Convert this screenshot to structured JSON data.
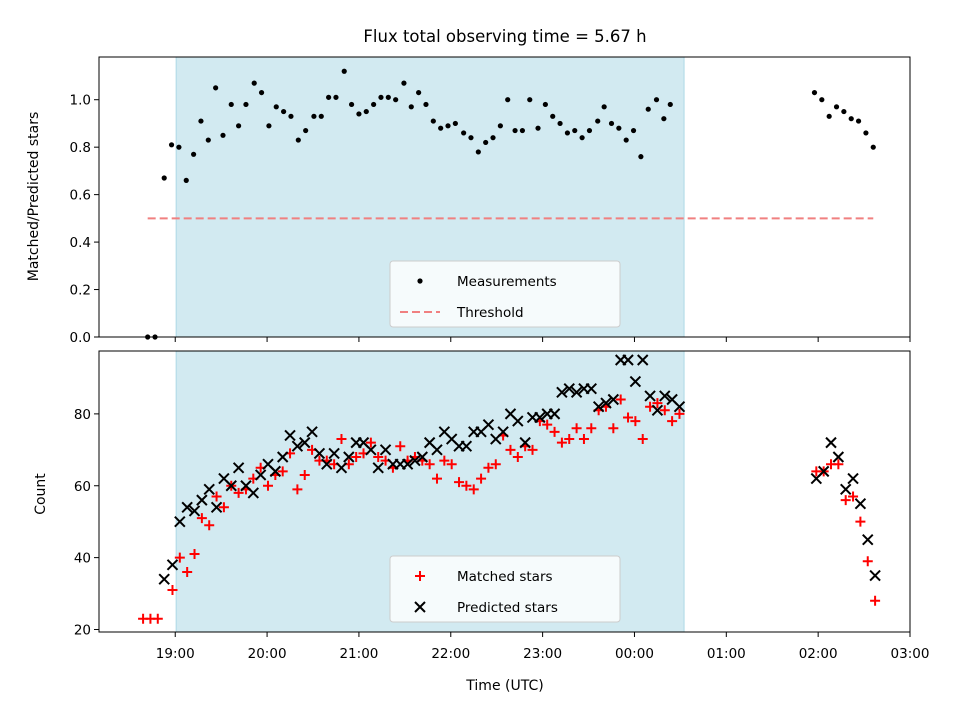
{
  "colors": {
    "shade": "#add8e6",
    "measurement": "#000000",
    "threshold": "#f08080",
    "matched": "#ff0000",
    "predicted": "#000000",
    "legend_bg": "#ffffff"
  },
  "chart_data": [
    {
      "type": "scatter",
      "title": "Flux total observing time = 5.67 h",
      "xlabel": "",
      "ylabel": "Matched/Predicted stars",
      "x_unit": "hours since 00:00 UTC (negative = previous day); tick labels are clock times",
      "xlim": [
        -5.83,
        3.0
      ],
      "ylim": [
        0.0,
        1.18
      ],
      "yticks": [
        "0.0",
        "0.2",
        "0.4",
        "0.6",
        "0.8",
        "1.0"
      ],
      "ytick_values": [
        0.0,
        0.2,
        0.4,
        0.6,
        0.8,
        1.0
      ],
      "xticks": [
        "19:00",
        "20:00",
        "21:00",
        "22:00",
        "23:00",
        "00:00",
        "01:00",
        "02:00",
        "03:00"
      ],
      "xtick_values": [
        -5,
        -4,
        -3,
        -2,
        -1,
        0,
        1,
        2,
        3
      ],
      "show_xticklabels": false,
      "shaded_span": [
        -4.99,
        0.54
      ],
      "legend": {
        "placement": "lower center",
        "entries": [
          "Measurements",
          "Threshold"
        ]
      },
      "series": [
        {
          "name": "Measurements",
          "marker": "dot",
          "points": [
            [
              -5.3,
              0.0
            ],
            [
              -5.22,
              0.0
            ],
            [
              -5.12,
              0.67
            ],
            [
              -5.04,
              0.81
            ],
            [
              -4.96,
              0.8
            ],
            [
              -4.88,
              0.66
            ],
            [
              -4.8,
              0.77
            ],
            [
              -4.72,
              0.91
            ],
            [
              -4.64,
              0.83
            ],
            [
              -4.56,
              1.05
            ],
            [
              -4.48,
              0.85
            ],
            [
              -4.39,
              0.98
            ],
            [
              -4.31,
              0.89
            ],
            [
              -4.23,
              0.98
            ],
            [
              -4.14,
              1.07
            ],
            [
              -4.06,
              1.03
            ],
            [
              -3.98,
              0.89
            ],
            [
              -3.9,
              0.97
            ],
            [
              -3.82,
              0.95
            ],
            [
              -3.74,
              0.93
            ],
            [
              -3.66,
              0.83
            ],
            [
              -3.58,
              0.87
            ],
            [
              -3.49,
              0.93
            ],
            [
              -3.41,
              0.93
            ],
            [
              -3.33,
              1.01
            ],
            [
              -3.25,
              1.01
            ],
            [
              -3.16,
              1.12
            ],
            [
              -3.08,
              0.98
            ],
            [
              -3.0,
              0.94
            ],
            [
              -2.92,
              0.95
            ],
            [
              -2.84,
              0.98
            ],
            [
              -2.76,
              1.01
            ],
            [
              -2.68,
              1.01
            ],
            [
              -2.6,
              1.0
            ],
            [
              -2.51,
              1.07
            ],
            [
              -2.43,
              0.97
            ],
            [
              -2.35,
              1.03
            ],
            [
              -2.27,
              0.98
            ],
            [
              -2.19,
              0.91
            ],
            [
              -2.11,
              0.88
            ],
            [
              -2.03,
              0.89
            ],
            [
              -1.95,
              0.9
            ],
            [
              -1.86,
              0.86
            ],
            [
              -1.78,
              0.84
            ],
            [
              -1.7,
              0.78
            ],
            [
              -1.62,
              0.82
            ],
            [
              -1.54,
              0.84
            ],
            [
              -1.46,
              0.89
            ],
            [
              -1.38,
              1.0
            ],
            [
              -1.3,
              0.87
            ],
            [
              -1.22,
              0.87
            ],
            [
              -1.14,
              1.0
            ],
            [
              -1.05,
              0.88
            ],
            [
              -0.97,
              0.98
            ],
            [
              -0.89,
              0.93
            ],
            [
              -0.81,
              0.9
            ],
            [
              -0.73,
              0.86
            ],
            [
              -0.65,
              0.87
            ],
            [
              -0.57,
              0.84
            ],
            [
              -0.49,
              0.87
            ],
            [
              -0.4,
              0.91
            ],
            [
              -0.33,
              0.97
            ],
            [
              -0.25,
              0.9
            ],
            [
              -0.17,
              0.88
            ],
            [
              -0.09,
              0.83
            ],
            [
              -0.01,
              0.87
            ],
            [
              0.07,
              0.76
            ],
            [
              0.15,
              0.96
            ],
            [
              0.24,
              1.0
            ],
            [
              0.32,
              0.92
            ],
            [
              0.39,
              0.98
            ],
            [
              1.96,
              1.03
            ],
            [
              2.04,
              1.0
            ],
            [
              2.12,
              0.93
            ],
            [
              2.2,
              0.97
            ],
            [
              2.28,
              0.95
            ],
            [
              2.36,
              0.92
            ],
            [
              2.44,
              0.91
            ],
            [
              2.52,
              0.86
            ],
            [
              2.6,
              0.8
            ]
          ]
        },
        {
          "name": "Threshold",
          "marker": "dashed-line",
          "points": [
            [
              -5.3,
              0.5
            ],
            [
              2.6,
              0.5
            ]
          ]
        }
      ]
    },
    {
      "type": "scatter",
      "title": "",
      "xlabel": "Time (UTC)",
      "ylabel": "Count",
      "x_unit": "hours since 00:00 UTC (negative = previous day); tick labels are clock times",
      "xlim": [
        -5.83,
        3.0
      ],
      "ylim": [
        19.3,
        97.5
      ],
      "yticks": [
        "20",
        "40",
        "60",
        "80"
      ],
      "ytick_values": [
        20,
        40,
        60,
        80
      ],
      "xticks": [
        "19:00",
        "20:00",
        "21:00",
        "22:00",
        "23:00",
        "00:00",
        "01:00",
        "02:00",
        "03:00"
      ],
      "xtick_values": [
        -5,
        -4,
        -3,
        -2,
        -1,
        0,
        1,
        2,
        3
      ],
      "show_xticklabels": true,
      "shaded_span": [
        -4.99,
        0.54
      ],
      "legend": {
        "placement": "lower center",
        "entries": [
          "Matched stars",
          "Predicted stars"
        ]
      },
      "series": [
        {
          "name": "Matched stars",
          "marker": "plus",
          "points": [
            [
              -5.35,
              23
            ],
            [
              -5.27,
              23
            ],
            [
              -5.19,
              23
            ],
            [
              -5.03,
              31
            ],
            [
              -4.95,
              40
            ],
            [
              -4.87,
              36
            ],
            [
              -4.79,
              41
            ],
            [
              -4.71,
              51
            ],
            [
              -4.63,
              49
            ],
            [
              -4.55,
              57
            ],
            [
              -4.47,
              54
            ],
            [
              -4.39,
              60
            ],
            [
              -4.31,
              58
            ],
            [
              -4.23,
              59
            ],
            [
              -4.15,
              62
            ],
            [
              -4.07,
              65
            ],
            [
              -3.99,
              60
            ],
            [
              -3.91,
              63
            ],
            [
              -3.83,
              64
            ],
            [
              -3.75,
              69
            ],
            [
              -3.67,
              59
            ],
            [
              -3.59,
              63
            ],
            [
              -3.51,
              70
            ],
            [
              -3.43,
              67
            ],
            [
              -3.35,
              67
            ],
            [
              -3.27,
              66
            ],
            [
              -3.19,
              73
            ],
            [
              -3.11,
              66
            ],
            [
              -3.03,
              68
            ],
            [
              -2.95,
              69
            ],
            [
              -2.87,
              72
            ],
            [
              -2.79,
              68
            ],
            [
              -2.71,
              67
            ],
            [
              -2.63,
              65
            ],
            [
              -2.55,
              71
            ],
            [
              -2.47,
              67
            ],
            [
              -2.39,
              68
            ],
            [
              -2.31,
              67
            ],
            [
              -2.23,
              66
            ],
            [
              -2.15,
              62
            ],
            [
              -2.07,
              67
            ],
            [
              -1.99,
              66
            ],
            [
              -1.91,
              61
            ],
            [
              -1.83,
              60
            ],
            [
              -1.75,
              59
            ],
            [
              -1.67,
              62
            ],
            [
              -1.59,
              65
            ],
            [
              -1.51,
              66
            ],
            [
              -1.43,
              74
            ],
            [
              -1.35,
              70
            ],
            [
              -1.27,
              68
            ],
            [
              -1.19,
              71
            ],
            [
              -1.11,
              70
            ],
            [
              -1.03,
              78
            ],
            [
              -0.95,
              77
            ],
            [
              -0.87,
              75
            ],
            [
              -0.79,
              72
            ],
            [
              -0.71,
              73
            ],
            [
              -0.63,
              76
            ],
            [
              -0.55,
              73
            ],
            [
              -0.47,
              76
            ],
            [
              -0.39,
              81
            ],
            [
              -0.31,
              82
            ],
            [
              -0.23,
              76
            ],
            [
              -0.15,
              84
            ],
            [
              -0.07,
              79
            ],
            [
              0.01,
              78
            ],
            [
              0.09,
              73
            ],
            [
              0.17,
              82
            ],
            [
              0.25,
              83
            ],
            [
              0.33,
              81
            ],
            [
              0.41,
              78
            ],
            [
              0.49,
              80
            ],
            [
              1.98,
              64
            ],
            [
              2.06,
              64
            ],
            [
              2.14,
              66
            ],
            [
              2.22,
              66
            ],
            [
              2.3,
              56
            ],
            [
              2.38,
              57
            ],
            [
              2.46,
              50
            ],
            [
              2.54,
              39
            ],
            [
              2.62,
              28
            ]
          ]
        },
        {
          "name": "Predicted stars",
          "marker": "x",
          "points": [
            [
              -5.12,
              34
            ],
            [
              -5.03,
              38
            ],
            [
              -4.95,
              50
            ],
            [
              -4.87,
              54
            ],
            [
              -4.79,
              53
            ],
            [
              -4.71,
              56
            ],
            [
              -4.63,
              59
            ],
            [
              -4.55,
              54
            ],
            [
              -4.47,
              62
            ],
            [
              -4.39,
              60
            ],
            [
              -4.31,
              65
            ],
            [
              -4.23,
              60
            ],
            [
              -4.15,
              58
            ],
            [
              -4.07,
              63
            ],
            [
              -3.99,
              66
            ],
            [
              -3.91,
              64
            ],
            [
              -3.83,
              68
            ],
            [
              -3.75,
              74
            ],
            [
              -3.67,
              71
            ],
            [
              -3.59,
              72
            ],
            [
              -3.51,
              75
            ],
            [
              -3.43,
              69
            ],
            [
              -3.35,
              66
            ],
            [
              -3.27,
              69
            ],
            [
              -3.19,
              65
            ],
            [
              -3.11,
              68
            ],
            [
              -3.03,
              72
            ],
            [
              -2.95,
              72
            ],
            [
              -2.87,
              70
            ],
            [
              -2.79,
              65
            ],
            [
              -2.71,
              70
            ],
            [
              -2.63,
              66
            ],
            [
              -2.55,
              66
            ],
            [
              -2.47,
              66
            ],
            [
              -2.39,
              67
            ],
            [
              -2.31,
              68
            ],
            [
              -2.23,
              72
            ],
            [
              -2.15,
              70
            ],
            [
              -2.07,
              75
            ],
            [
              -1.99,
              73
            ],
            [
              -1.91,
              71
            ],
            [
              -1.83,
              71
            ],
            [
              -1.75,
              75
            ],
            [
              -1.67,
              75
            ],
            [
              -1.59,
              77
            ],
            [
              -1.51,
              73
            ],
            [
              -1.43,
              75
            ],
            [
              -1.35,
              80
            ],
            [
              -1.27,
              78
            ],
            [
              -1.19,
              72
            ],
            [
              -1.11,
              79
            ],
            [
              -1.03,
              79
            ],
            [
              -0.95,
              80
            ],
            [
              -0.87,
              80
            ],
            [
              -0.79,
              86
            ],
            [
              -0.71,
              87
            ],
            [
              -0.63,
              86
            ],
            [
              -0.55,
              87
            ],
            [
              -0.47,
              87
            ],
            [
              -0.39,
              82
            ],
            [
              -0.31,
              83
            ],
            [
              -0.23,
              84
            ],
            [
              -0.15,
              95
            ],
            [
              -0.07,
              95
            ],
            [
              0.01,
              89
            ],
            [
              0.09,
              95
            ],
            [
              0.17,
              85
            ],
            [
              0.25,
              81
            ],
            [
              0.33,
              85
            ],
            [
              0.41,
              84
            ],
            [
              0.49,
              82
            ],
            [
              1.98,
              62
            ],
            [
              2.06,
              64
            ],
            [
              2.14,
              72
            ],
            [
              2.22,
              68
            ],
            [
              2.3,
              59
            ],
            [
              2.38,
              62
            ],
            [
              2.46,
              55
            ],
            [
              2.54,
              45
            ],
            [
              2.62,
              35
            ]
          ]
        }
      ]
    }
  ]
}
